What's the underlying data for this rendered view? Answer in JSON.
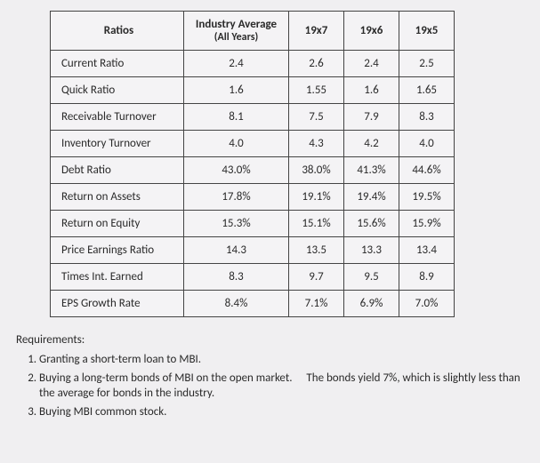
{
  "table": {
    "headers": {
      "ratios": "Ratios",
      "avg_line1": "Industry Average",
      "avg_line2": "(All Years)",
      "y7": "19x7",
      "y6": "19x6",
      "y5": "19x5"
    },
    "rows": [
      {
        "label": "Current Ratio",
        "avg": "2.4",
        "y7": "2.6",
        "y6": "2.4",
        "y5": "2.5"
      },
      {
        "label": "Quick Ratio",
        "avg": "1.6",
        "y7": "1.55",
        "y6": "1.6",
        "y5": "1.65"
      },
      {
        "label": "Receivable Turnover",
        "avg": "8.1",
        "y7": "7.5",
        "y6": "7.9",
        "y5": "8.3"
      },
      {
        "label": "Inventory Turnover",
        "avg": "4.0",
        "y7": "4.3",
        "y6": "4.2",
        "y5": "4.0"
      },
      {
        "label": "Debt Ratio",
        "avg": "43.0%",
        "y7": "38.0%",
        "y6": "41.3%",
        "y5": "44.6%"
      },
      {
        "label": "Return on Assets",
        "avg": "17.8%",
        "y7": "19.1%",
        "y6": "19.4%",
        "y5": "19.5%"
      },
      {
        "label": "Return on Equity",
        "avg": "15.3%",
        "y7": "15.1%",
        "y6": "15.6%",
        "y5": "15.9%"
      },
      {
        "label": "Price Earnings Ratio",
        "avg": "14.3",
        "y7": "13.5",
        "y6": "13.3",
        "y5": "13.4"
      },
      {
        "label": "Times Int. Earned",
        "avg": "8.3",
        "y7": "9.7",
        "y6": "9.5",
        "y5": "8.9"
      },
      {
        "label": "EPS Growth Rate",
        "avg": "8.4%",
        "y7": "7.1%",
        "y6": "6.9%",
        "y5": "7.0%"
      }
    ]
  },
  "requirements": {
    "title": "Requirements:",
    "items": [
      "Granting a short-term loan to MBI.",
      "Buying a long-term bonds of MBI on the open market.  The bonds yield 7%, which is slightly less than the average for bonds in the industry.",
      "Buying MBI common stock."
    ]
  },
  "style": {
    "background": "#f0eff1",
    "border_color": "#444444",
    "text_color": "#2a2a2a",
    "header_fontsize": 13,
    "body_fontsize": 13
  }
}
